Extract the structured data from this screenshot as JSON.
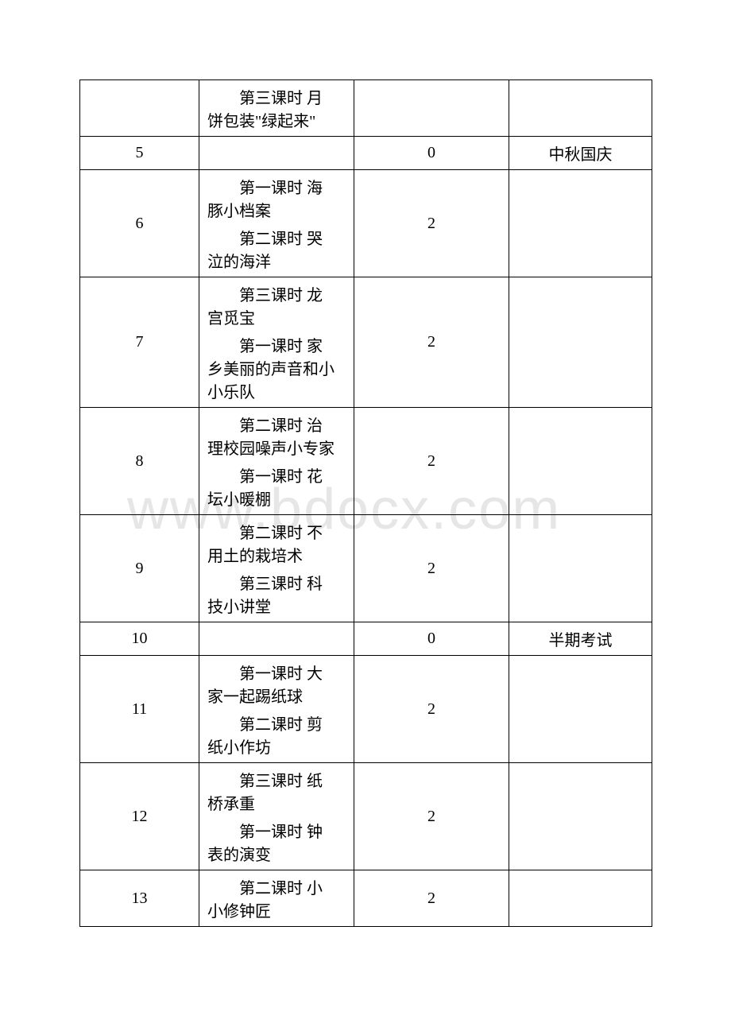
{
  "watermark": "www.bdocx.com",
  "rows": [
    {
      "c1": "",
      "lessons": [
        {
          "t": "第三课时 月",
          "b": "饼包装\"绿起来\""
        }
      ],
      "c3": "",
      "c4": ""
    },
    {
      "c1": "5",
      "lessons": [],
      "c3": "0",
      "c4": "中秋国庆"
    },
    {
      "c1": "6",
      "lessons": [
        {
          "t": "第一课时 海",
          "b": "豚小档案"
        },
        {
          "t": "第二课时 哭",
          "b": "泣的海洋"
        }
      ],
      "c3": "2",
      "c4": ""
    },
    {
      "c1": "7",
      "lessons": [
        {
          "t": "第三课时 龙",
          "b": "宫觅宝"
        },
        {
          "t": "第一课时 家",
          "b": "乡美丽的声音和小小乐队"
        }
      ],
      "c3": "2",
      "c4": ""
    },
    {
      "c1": "8",
      "lessons": [
        {
          "t": "第二课时 治",
          "b": "理校园噪声小专家"
        },
        {
          "t": "第一课时 花",
          "b": "坛小暖棚"
        }
      ],
      "c3": "2",
      "c4": ""
    },
    {
      "c1": "9",
      "lessons": [
        {
          "t": "第二课时 不",
          "b": "用土的栽培术"
        },
        {
          "t": "第三课时 科",
          "b": "技小讲堂"
        }
      ],
      "c3": "2",
      "c4": ""
    },
    {
      "c1": "10",
      "lessons": [],
      "c3": "0",
      "c4": "半期考试"
    },
    {
      "c1": "11",
      "lessons": [
        {
          "t": "第一课时 大",
          "b": "家一起踢纸球"
        },
        {
          "t": "第二课时 剪",
          "b": "纸小作坊"
        }
      ],
      "c3": "2",
      "c4": ""
    },
    {
      "c1": "12",
      "lessons": [
        {
          "t": "第三课时 纸",
          "b": "桥承重"
        },
        {
          "t": "第一课时 钟",
          "b": "表的演变"
        }
      ],
      "c3": "2",
      "c4": ""
    },
    {
      "c1": "13",
      "lessons": [
        {
          "t": "第二课时 小",
          "b": "小修钟匠"
        }
      ],
      "c3": "2",
      "c4": ""
    }
  ]
}
